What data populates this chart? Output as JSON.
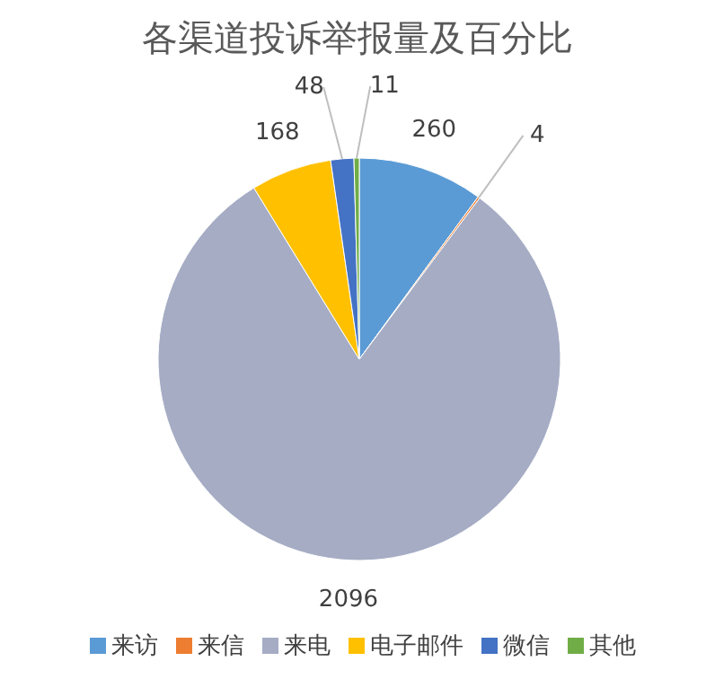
{
  "chart_data": {
    "type": "pie",
    "title": "各渠道投诉举报量及百分比",
    "categories": [
      "来访",
      "来信",
      "来电",
      "电子邮件",
      "微信",
      "其他"
    ],
    "values": [
      260,
      4,
      2096,
      168,
      48,
      11
    ],
    "colors": [
      "#5b9bd5",
      "#ed7d31",
      "#a5acc4",
      "#ffc000",
      "#4472c4",
      "#70ad47"
    ],
    "data_labels": true,
    "legend": "bottom"
  }
}
